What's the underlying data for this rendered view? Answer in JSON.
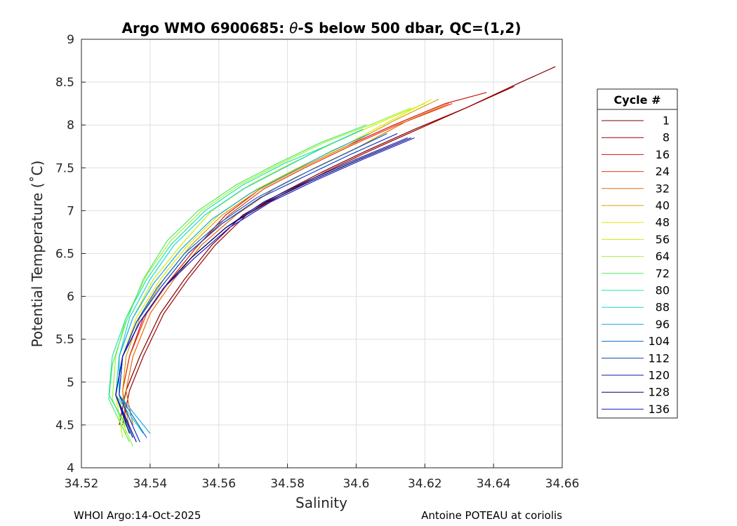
{
  "chart_data": {
    "type": "line",
    "title_prefix": "Argo WMO 6900685: ",
    "title_theta": "θ",
    "title_suffix": "-S below 500 dbar,  QC=(1,2)",
    "xlabel": "Salinity",
    "ylabel": "Potential Temperature (˚C)",
    "xlim": [
      34.52,
      34.66
    ],
    "ylim": [
      4,
      9
    ],
    "x_ticks": [
      "34.52",
      "34.54",
      "34.56",
      "34.58",
      "34.6",
      "34.62",
      "34.64",
      "34.66"
    ],
    "y_ticks": [
      "4",
      "4.5",
      "5",
      "5.5",
      "6",
      "6.5",
      "7",
      "7.5",
      "8",
      "8.5",
      "9"
    ],
    "grid": true,
    "legend": {
      "title": "Cycle #",
      "placement": "right",
      "entries": [
        {
          "label": "1",
          "color": "#7f0000"
        },
        {
          "label": "8",
          "color": "#a00000"
        },
        {
          "label": "16",
          "color": "#d01010"
        },
        {
          "label": "24",
          "color": "#e83a0a"
        },
        {
          "label": "32",
          "color": "#e86a00"
        },
        {
          "label": "40",
          "color": "#d4a000"
        },
        {
          "label": "48",
          "color": "#e6e600"
        },
        {
          "label": "56",
          "color": "#ccf000"
        },
        {
          "label": "64",
          "color": "#9ef23a"
        },
        {
          "label": "72",
          "color": "#50ea60"
        },
        {
          "label": "80",
          "color": "#22e6a0"
        },
        {
          "label": "88",
          "color": "#1ad6d6"
        },
        {
          "label": "96",
          "color": "#1aa8e6"
        },
        {
          "label": "104",
          "color": "#0a6ad0"
        },
        {
          "label": "112",
          "color": "#0a3cc0"
        },
        {
          "label": "120",
          "color": "#0a18a8"
        },
        {
          "label": "128",
          "color": "#00005a"
        },
        {
          "label": "136",
          "color": "#1a1ad0"
        }
      ]
    },
    "series": [
      {
        "cycle": "1",
        "color": "#7f0000",
        "x": [
          34.531,
          34.533,
          34.537,
          34.543,
          34.55,
          34.558,
          34.567,
          34.578,
          34.59,
          34.603,
          34.617,
          34.632,
          34.648,
          34.658
        ],
        "y": [
          4.5,
          4.9,
          5.3,
          5.8,
          6.2,
          6.6,
          6.95,
          7.2,
          7.45,
          7.7,
          7.95,
          8.2,
          8.5,
          8.68
        ]
      },
      {
        "cycle": "8",
        "color": "#a00000",
        "x": [
          34.532,
          34.534,
          34.538,
          34.544,
          34.551,
          34.559,
          34.568,
          34.579,
          34.591,
          34.604,
          34.618,
          34.632,
          34.646
        ],
        "y": [
          4.5,
          4.9,
          5.3,
          5.8,
          6.2,
          6.6,
          6.95,
          7.2,
          7.45,
          7.7,
          7.95,
          8.2,
          8.45
        ]
      },
      {
        "cycle": "16",
        "color": "#d01010",
        "x": [
          34.534,
          34.532,
          34.534,
          34.538,
          34.545,
          34.553,
          34.562,
          34.572,
          34.584,
          34.597,
          34.611,
          34.626,
          34.638
        ],
        "y": [
          4.45,
          4.9,
          5.3,
          5.75,
          6.15,
          6.55,
          6.95,
          7.25,
          7.5,
          7.75,
          8.0,
          8.25,
          8.38
        ]
      },
      {
        "cycle": "24",
        "color": "#e83a0a",
        "x": [
          34.533,
          34.532,
          34.534,
          34.539,
          34.546,
          34.554,
          34.563,
          34.573,
          34.585,
          34.598,
          34.612,
          34.628
        ],
        "y": [
          4.5,
          4.9,
          5.3,
          5.8,
          6.2,
          6.6,
          6.95,
          7.25,
          7.5,
          7.75,
          8.0,
          8.25
        ]
      },
      {
        "cycle": "32",
        "color": "#e86a00",
        "x": [
          34.535,
          34.533,
          34.535,
          34.54,
          34.547,
          34.555,
          34.565,
          34.576,
          34.588,
          34.601,
          34.615,
          34.627
        ],
        "y": [
          4.5,
          4.9,
          5.3,
          5.8,
          6.2,
          6.6,
          6.95,
          7.25,
          7.5,
          7.75,
          8.05,
          8.25
        ]
      },
      {
        "cycle": "40",
        "color": "#d4a000",
        "x": [
          34.534,
          34.532,
          34.533,
          34.537,
          34.544,
          34.552,
          34.561,
          34.572,
          34.584,
          34.597,
          34.611,
          34.624
        ],
        "y": [
          4.45,
          4.9,
          5.3,
          5.75,
          6.2,
          6.6,
          6.95,
          7.25,
          7.5,
          7.75,
          8.05,
          8.3
        ]
      },
      {
        "cycle": "48",
        "color": "#e6e600",
        "x": [
          34.533,
          34.531,
          34.532,
          34.536,
          34.543,
          34.551,
          34.56,
          34.571,
          34.583,
          34.596,
          34.61,
          34.622
        ],
        "y": [
          4.4,
          4.85,
          5.3,
          5.75,
          6.2,
          6.6,
          6.95,
          7.25,
          7.5,
          7.75,
          8.05,
          8.3
        ]
      },
      {
        "cycle": "56",
        "color": "#ccf000",
        "x": [
          34.532,
          34.53,
          34.531,
          34.535,
          34.541,
          34.549,
          34.558,
          34.569,
          34.581,
          34.594,
          34.608,
          34.62
        ],
        "y": [
          4.35,
          4.85,
          5.3,
          5.75,
          6.2,
          6.6,
          7.0,
          7.3,
          7.55,
          7.8,
          8.05,
          8.25
        ]
      },
      {
        "cycle": "64",
        "color": "#9ef23a",
        "x": [
          34.535,
          34.529,
          34.53,
          34.533,
          34.539,
          34.546,
          34.555,
          34.566,
          34.578,
          34.591,
          34.604,
          34.616
        ],
        "y": [
          4.25,
          4.8,
          5.3,
          5.75,
          6.25,
          6.65,
          7.0,
          7.3,
          7.55,
          7.8,
          8.0,
          8.2
        ]
      },
      {
        "cycle": "72",
        "color": "#50ea60",
        "x": [
          34.534,
          34.528,
          34.529,
          34.533,
          34.538,
          34.545,
          34.554,
          34.565,
          34.577,
          34.59,
          34.603
        ],
        "y": [
          4.3,
          4.8,
          5.2,
          5.7,
          6.2,
          6.65,
          7.0,
          7.3,
          7.55,
          7.8,
          8.0
        ]
      },
      {
        "cycle": "80",
        "color": "#22e6a0",
        "x": [
          34.535,
          34.528,
          34.529,
          34.533,
          34.539,
          34.546,
          34.556,
          34.567,
          34.579,
          34.591,
          34.602
        ],
        "y": [
          4.35,
          4.85,
          5.3,
          5.75,
          6.2,
          6.6,
          7.0,
          7.3,
          7.55,
          7.75,
          7.95
        ]
      },
      {
        "cycle": "88",
        "color": "#1ad6d6",
        "x": [
          34.538,
          34.53,
          34.531,
          34.534,
          34.54,
          34.547,
          34.556,
          34.567,
          34.579,
          34.591,
          34.602
        ],
        "y": [
          4.4,
          4.85,
          5.3,
          5.75,
          6.2,
          6.6,
          6.95,
          7.25,
          7.5,
          7.75,
          7.95
        ]
      },
      {
        "cycle": "96",
        "color": "#1aa8e6",
        "x": [
          34.54,
          34.531,
          34.531,
          34.535,
          34.541,
          34.549,
          34.558,
          34.569,
          34.581,
          34.593,
          34.604
        ],
        "y": [
          4.4,
          4.85,
          5.3,
          5.75,
          6.15,
          6.55,
          6.9,
          7.2,
          7.45,
          7.7,
          7.9
        ]
      },
      {
        "cycle": "104",
        "color": "#0a6ad0",
        "x": [
          34.539,
          34.531,
          34.532,
          34.536,
          34.542,
          34.55,
          34.56,
          34.571,
          34.583,
          34.596,
          34.609
        ],
        "y": [
          4.35,
          4.85,
          5.3,
          5.7,
          6.1,
          6.5,
          6.85,
          7.15,
          7.4,
          7.65,
          7.9
        ]
      },
      {
        "cycle": "112",
        "color": "#0a3cc0",
        "x": [
          34.537,
          34.531,
          34.532,
          34.536,
          34.543,
          34.551,
          34.561,
          34.572,
          34.585,
          34.598,
          34.612
        ],
        "y": [
          4.3,
          4.85,
          5.3,
          5.7,
          6.1,
          6.5,
          6.85,
          7.15,
          7.4,
          7.65,
          7.9
        ]
      },
      {
        "cycle": "120",
        "color": "#0a18a8",
        "x": [
          34.536,
          34.53,
          34.532,
          34.537,
          34.544,
          34.552,
          34.562,
          34.573,
          34.586,
          34.6,
          34.615
        ],
        "y": [
          4.3,
          4.85,
          5.3,
          5.7,
          6.1,
          6.45,
          6.8,
          7.1,
          7.35,
          7.6,
          7.85
        ]
      },
      {
        "cycle": "128",
        "color": "#00005a",
        "x": [
          34.534,
          34.53,
          34.532,
          34.537,
          34.544,
          34.552,
          34.562,
          34.574,
          34.587,
          34.601,
          34.616
        ],
        "y": [
          4.4,
          4.85,
          5.3,
          5.7,
          6.1,
          6.45,
          6.8,
          7.1,
          7.35,
          7.6,
          7.85
        ]
      },
      {
        "cycle": "136",
        "color": "#1a1ad0",
        "x": [
          34.535,
          34.53,
          34.532,
          34.537,
          34.544,
          34.553,
          34.563,
          34.575,
          34.588,
          34.602,
          34.617
        ],
        "y": [
          4.35,
          4.85,
          5.3,
          5.7,
          6.1,
          6.45,
          6.8,
          7.1,
          7.35,
          7.6,
          7.85
        ]
      }
    ]
  },
  "footer": {
    "left": "WHOI Argo:14-Oct-2025",
    "right": "Antoine POTEAU at coriolis"
  }
}
